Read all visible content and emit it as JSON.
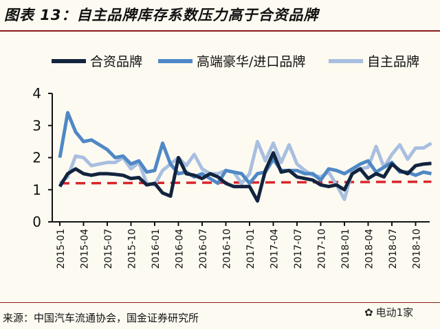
{
  "chart_data": {
    "type": "line",
    "title": "图表 13：自主品牌库存系数压力高于合资品牌",
    "xlabel": "",
    "ylabel": "",
    "ylim": [
      0,
      4
    ],
    "yticks": [
      "0",
      "1",
      "2",
      "3",
      "4"
    ],
    "xtick_labels": [
      "2015-01",
      "2015-04",
      "2015-07",
      "2015-10",
      "2016-01",
      "2016-04",
      "2016-07",
      "2016-10",
      "2017-01",
      "2017-04",
      "2017-07",
      "2017-10",
      "2018-01",
      "2018-04",
      "2018-07",
      "2018-10"
    ],
    "x_start": "2015-01",
    "x_end": "2018-12",
    "legend_position": "top",
    "grid": false,
    "series": [
      {
        "name": "合资品牌",
        "color": "#13243f",
        "values": [
          1.1,
          1.5,
          1.65,
          1.5,
          1.45,
          1.5,
          1.5,
          1.48,
          1.45,
          1.35,
          1.38,
          1.15,
          1.2,
          0.9,
          0.8,
          2.0,
          1.5,
          1.45,
          1.35,
          1.5,
          1.4,
          1.2,
          1.1,
          1.1,
          1.1,
          0.65,
          1.6,
          2.15,
          1.55,
          1.6,
          1.4,
          1.35,
          1.3,
          1.15,
          1.1,
          1.15,
          1.0,
          1.5,
          1.65,
          1.35,
          1.5,
          1.4,
          1.8,
          1.6,
          1.5,
          1.75,
          1.8,
          1.82
        ]
      },
      {
        "name": "高端豪华/进口品牌",
        "color": "#4f88c6",
        "values": [
          2.0,
          3.4,
          2.8,
          2.5,
          2.55,
          2.4,
          2.25,
          2.0,
          2.05,
          1.8,
          1.9,
          1.55,
          1.6,
          2.45,
          1.8,
          1.5,
          1.55,
          1.4,
          1.5,
          1.35,
          1.2,
          1.6,
          1.55,
          1.5,
          1.2,
          1.5,
          1.55,
          1.95,
          1.6,
          1.6,
          1.6,
          1.5,
          1.5,
          1.3,
          1.65,
          1.6,
          1.5,
          1.65,
          1.8,
          1.9,
          1.55,
          1.7,
          1.85,
          1.55,
          1.55,
          1.45,
          1.55,
          1.5
        ]
      },
      {
        "name": "自主品牌",
        "color": "#a9bfe0",
        "values": [
          1.2,
          1.4,
          2.05,
          2.0,
          1.75,
          1.8,
          1.85,
          1.85,
          2.0,
          1.65,
          1.85,
          1.2,
          1.15,
          1.6,
          1.8,
          2.0,
          1.75,
          2.1,
          1.65,
          1.5,
          1.5,
          1.6,
          1.55,
          1.2,
          1.5,
          2.5,
          1.9,
          2.45,
          1.85,
          2.4,
          1.8,
          1.6,
          1.45,
          1.4,
          1.55,
          1.15,
          0.7,
          1.6,
          1.65,
          1.7,
          2.35,
          1.7,
          2.1,
          2.4,
          1.95,
          2.3,
          2.3,
          2.45
        ]
      }
    ],
    "reference_line": {
      "color": "#d9252b",
      "style": "dashed",
      "from": 1.2,
      "to": 1.25
    }
  },
  "source": "来源：中国汽车流通协会，国金证券研究所",
  "watermark": "电动1家"
}
